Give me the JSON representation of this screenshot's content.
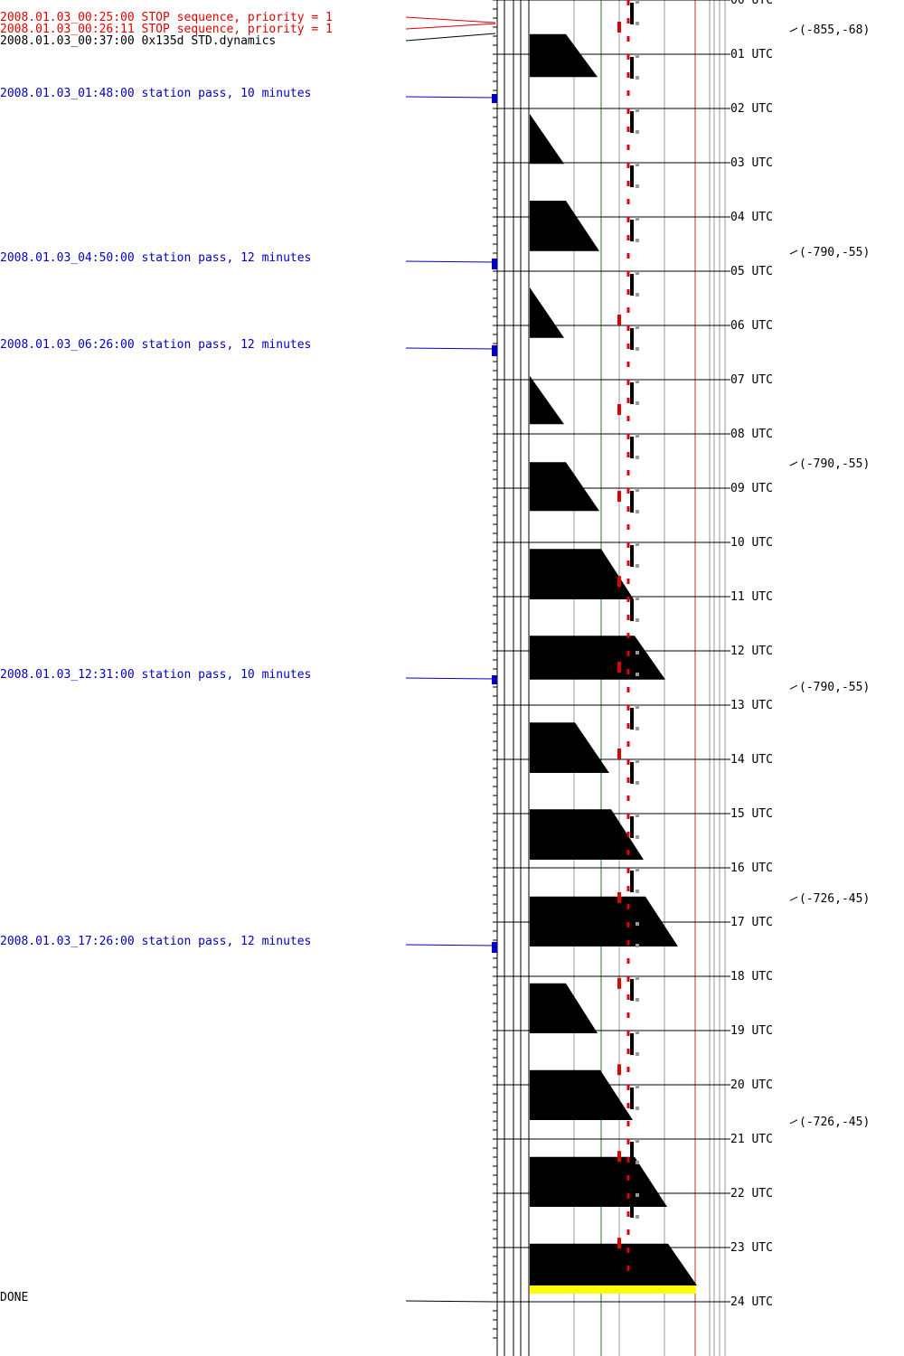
{
  "colors": {
    "stop_event": "#e00000",
    "command_event": "#000000",
    "station_pass": "#0000c0",
    "done": "#000000",
    "yellow_bar": "#ffff00",
    "red_marker": "#e00000",
    "block_fill": "#000000",
    "green_line": "#2a7a2a",
    "red_line": "#c03030"
  },
  "events": [
    {
      "text": "2008.01.03_00:25:00 STOP sequence, priority = 1",
      "hour": 0.4167,
      "type": "stop"
    },
    {
      "text": "2008.01.03_00:26:11 STOP sequence, priority = 1",
      "hour": 0.4364,
      "type": "stop"
    },
    {
      "text": "2008.01.03_00:37:00 0x135d STD.dynamics",
      "hour": 0.6167,
      "type": "command"
    },
    {
      "text": "2008.01.03_01:48:00 station pass, 10 minutes",
      "hour": 1.8,
      "type": "pass",
      "duration_min": 10
    },
    {
      "text": "2008.01.03_04:50:00 station pass, 12 minutes",
      "hour": 4.8333,
      "type": "pass",
      "duration_min": 12
    },
    {
      "text": "2008.01.03_06:26:00 station pass, 12 minutes",
      "hour": 6.4333,
      "type": "pass",
      "duration_min": 12
    },
    {
      "text": "2008.01.03_12:31:00 station pass, 10 minutes",
      "hour": 12.5167,
      "type": "pass",
      "duration_min": 10
    },
    {
      "text": "2008.01.03_17:26:00 station pass, 12 minutes",
      "hour": 17.4333,
      "type": "pass",
      "duration_min": 12
    },
    {
      "text": "DONE",
      "hour": 24.0,
      "type": "done"
    }
  ],
  "hour_labels": [
    "00 UTC",
    "01 UTC",
    "02 UTC",
    "03 UTC",
    "04 UTC",
    "05 UTC",
    "06 UTC",
    "07 UTC",
    "08 UTC",
    "09 UTC",
    "10 UTC",
    "11 UTC",
    "12 UTC",
    "13 UTC",
    "14 UTC",
    "15 UTC",
    "16 UTC",
    "17 UTC",
    "18 UTC",
    "19 UTC",
    "20 UTC",
    "21 UTC",
    "22 UTC",
    "23 UTC",
    "24 UTC"
  ],
  "coordinate_annotations": [
    {
      "text": "(-855,-68)",
      "hour": 0.55
    },
    {
      "text": "(-790,-55)",
      "hour": 4.65
    },
    {
      "text": "(-790,-55)",
      "hour": 8.55
    },
    {
      "text": "(-790,-55)",
      "hour": 12.67
    },
    {
      "text": "(-726,-45)",
      "hour": 16.57
    },
    {
      "text": "(-726,-45)",
      "hour": 20.68
    }
  ],
  "blocks": [
    {
      "start": 0.63,
      "end": 1.42,
      "top_width": 0.4,
      "bottom_width": 0.75
    },
    {
      "start": 2.1,
      "end": 3.02,
      "top_width": 0.0,
      "bottom_width": 0.38
    },
    {
      "start": 3.7,
      "end": 4.63,
      "top_width": 0.4,
      "bottom_width": 0.77
    },
    {
      "start": 5.3,
      "end": 6.23,
      "top_width": 0.0,
      "bottom_width": 0.38
    },
    {
      "start": 6.93,
      "end": 7.82,
      "top_width": 0.0,
      "bottom_width": 0.38
    },
    {
      "start": 8.52,
      "end": 9.42,
      "top_width": 0.4,
      "bottom_width": 0.77
    },
    {
      "start": 10.12,
      "end": 11.05,
      "top_width": 0.79,
      "bottom_width": 1.15
    },
    {
      "start": 11.72,
      "end": 12.53,
      "top_width": 1.16,
      "bottom_width": 1.5
    },
    {
      "start": 13.32,
      "end": 14.25,
      "top_width": 0.5,
      "bottom_width": 0.88
    },
    {
      "start": 14.92,
      "end": 15.85,
      "top_width": 0.9,
      "bottom_width": 1.26
    },
    {
      "start": 16.53,
      "end": 17.45,
      "top_width": 1.28,
      "bottom_width": 1.64
    },
    {
      "start": 18.13,
      "end": 19.05,
      "top_width": 0.4,
      "bottom_width": 0.75
    },
    {
      "start": 19.73,
      "end": 20.65,
      "top_width": 0.78,
      "bottom_width": 1.14
    },
    {
      "start": 21.33,
      "end": 22.25,
      "top_width": 1.16,
      "bottom_width": 1.52
    },
    {
      "start": 22.93,
      "end": 23.7,
      "top_width": 1.53,
      "bottom_width": 1.85
    }
  ],
  "yellow_bar": {
    "start": 23.7,
    "end": 23.85
  },
  "red_markers": [
    0.5,
    5.9,
    7.55,
    9.15,
    10.72,
    12.3,
    13.9,
    16.55,
    18.13,
    19.72,
    21.32,
    22.92
  ],
  "done_label": "DONE"
}
